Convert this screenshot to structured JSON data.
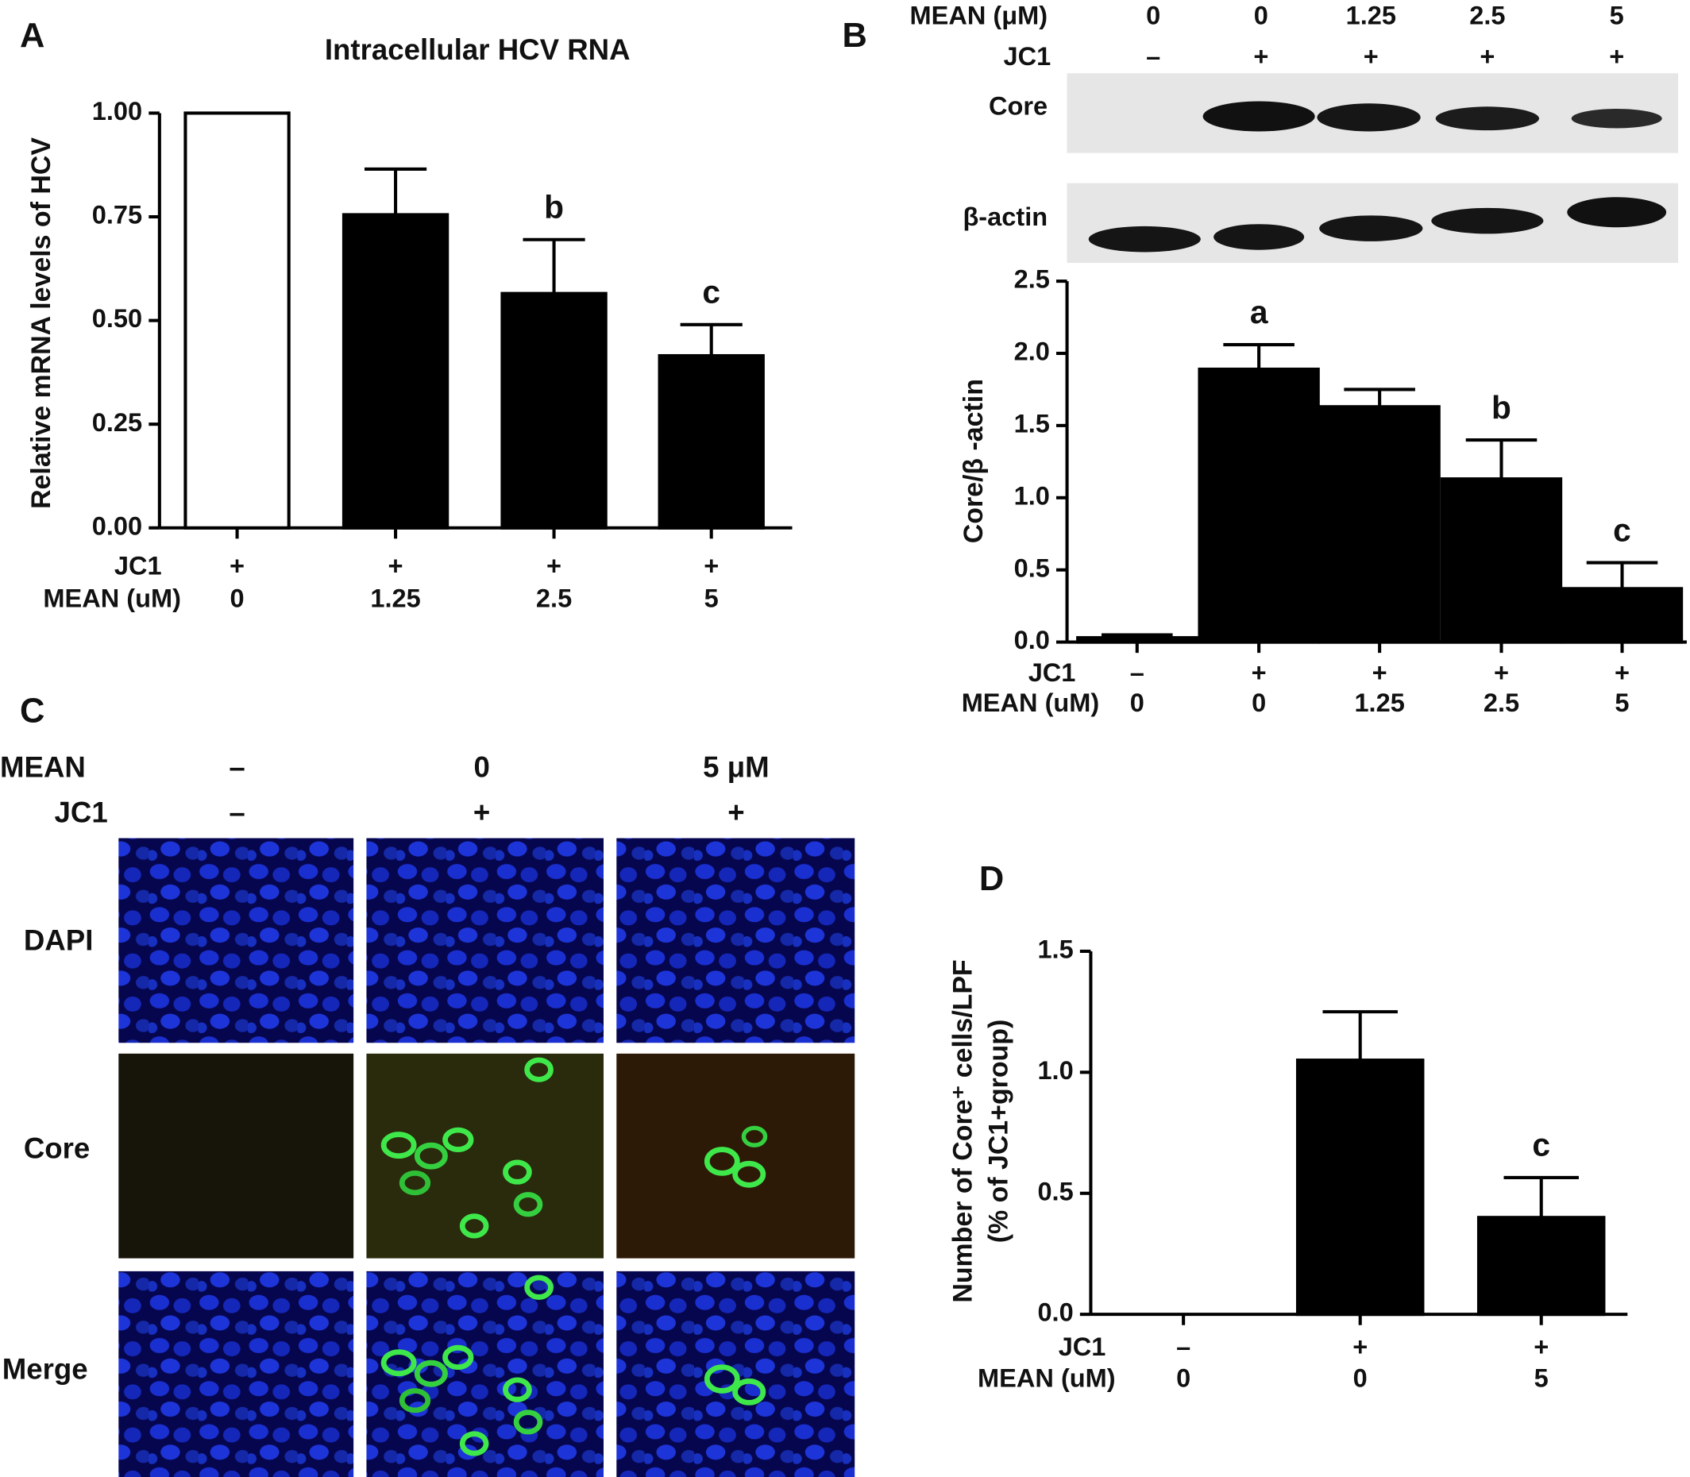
{
  "chart_data": [
    {
      "type": "bar",
      "panel": "A",
      "title": "Intracellular HCV RNA",
      "ylabel": "Relative mRNA levels of HCV",
      "values": [
        1.0,
        0.755,
        0.565,
        0.415
      ],
      "errors": [
        null,
        0.11,
        0.13,
        0.075
      ],
      "colors": [
        "#ffffff",
        "#000000",
        "#000000",
        "#000000"
      ],
      "letters": [
        null,
        null,
        "b",
        "c"
      ],
      "ylim": [
        0,
        1
      ],
      "yticks": [
        {
          "value": 0,
          "label": "0.00"
        },
        {
          "value": 0.25,
          "label": "0.25"
        },
        {
          "value": 0.5,
          "label": "0.50"
        },
        {
          "value": 0.75,
          "label": "0.75"
        },
        {
          "value": 1,
          "label": "1.00"
        }
      ],
      "condition_rows": [
        {
          "label": "JC1",
          "values": [
            "+",
            "+",
            "+",
            "+"
          ]
        },
        {
          "label": "MEAN (uM)",
          "values": [
            "0",
            "1.25",
            "2.5",
            "5"
          ]
        }
      ]
    },
    {
      "type": "bar",
      "panel": "B",
      "ylabel": "Core/β -actin",
      "values": [
        0.03,
        1.89,
        1.63,
        1.13,
        0.37
      ],
      "errors": [
        0.02,
        0.17,
        0.12,
        0.27,
        0.18
      ],
      "colors": [
        "#000000",
        "#000000",
        "#000000",
        "#000000",
        "#000000"
      ],
      "letters": [
        null,
        "a",
        null,
        "b",
        "c"
      ],
      "ylim": [
        0,
        2.5
      ],
      "yticks": [
        {
          "value": 0,
          "label": "0.0"
        },
        {
          "value": 0.5,
          "label": "0.5"
        },
        {
          "value": 1,
          "label": "1.0"
        },
        {
          "value": 1.5,
          "label": "1.5"
        },
        {
          "value": 2,
          "label": "2.0"
        },
        {
          "value": 2.5,
          "label": "2.5"
        }
      ],
      "condition_rows": [
        {
          "label": "JC1",
          "values": [
            "–",
            "+",
            "+",
            "+",
            "+"
          ]
        },
        {
          "label": "MEAN (uM)",
          "values": [
            "0",
            "0",
            "1.25",
            "2.5",
            "5"
          ]
        }
      ]
    },
    {
      "type": "bar",
      "panel": "D",
      "ylabel": [
        "Number of Core⁺ cells/LPF",
        "(% of JC1+group)"
      ],
      "values": [
        0,
        1.05,
        0.4
      ],
      "errors": [
        null,
        0.2,
        0.165
      ],
      "colors": [
        "#000000",
        "#000000",
        "#000000"
      ],
      "letters": [
        null,
        null,
        "c"
      ],
      "ylim": [
        0,
        1.5
      ],
      "yticks": [
        {
          "value": 0,
          "label": "0.0"
        },
        {
          "value": 0.5,
          "label": "0.5"
        },
        {
          "value": 1,
          "label": "1.0"
        },
        {
          "value": 1.5,
          "label": "1.5"
        }
      ],
      "condition_rows": [
        {
          "label": "JC1",
          "values": [
            "–",
            "+",
            "+"
          ]
        },
        {
          "label": "MEAN (uM)",
          "values": [
            "0",
            "0",
            "5"
          ]
        }
      ]
    }
  ],
  "blot": {
    "header_rows": [
      {
        "label": "MEAN (μM)",
        "values": [
          "0",
          "0",
          "1.25",
          "2.5",
          "5"
        ]
      },
      {
        "label": "JC1",
        "values": [
          "–",
          "+",
          "+",
          "+",
          "+"
        ]
      }
    ],
    "bands": [
      "Core",
      "β-actin"
    ]
  },
  "panel_c": {
    "panel": "C",
    "header_rows": [
      {
        "label": "MEAN",
        "values": [
          "–",
          "0",
          "5 μM"
        ]
      },
      {
        "label": "JC1",
        "values": [
          "–",
          "+",
          "+"
        ]
      }
    ],
    "row_labels": [
      "DAPI",
      "Core",
      "Merge"
    ]
  }
}
